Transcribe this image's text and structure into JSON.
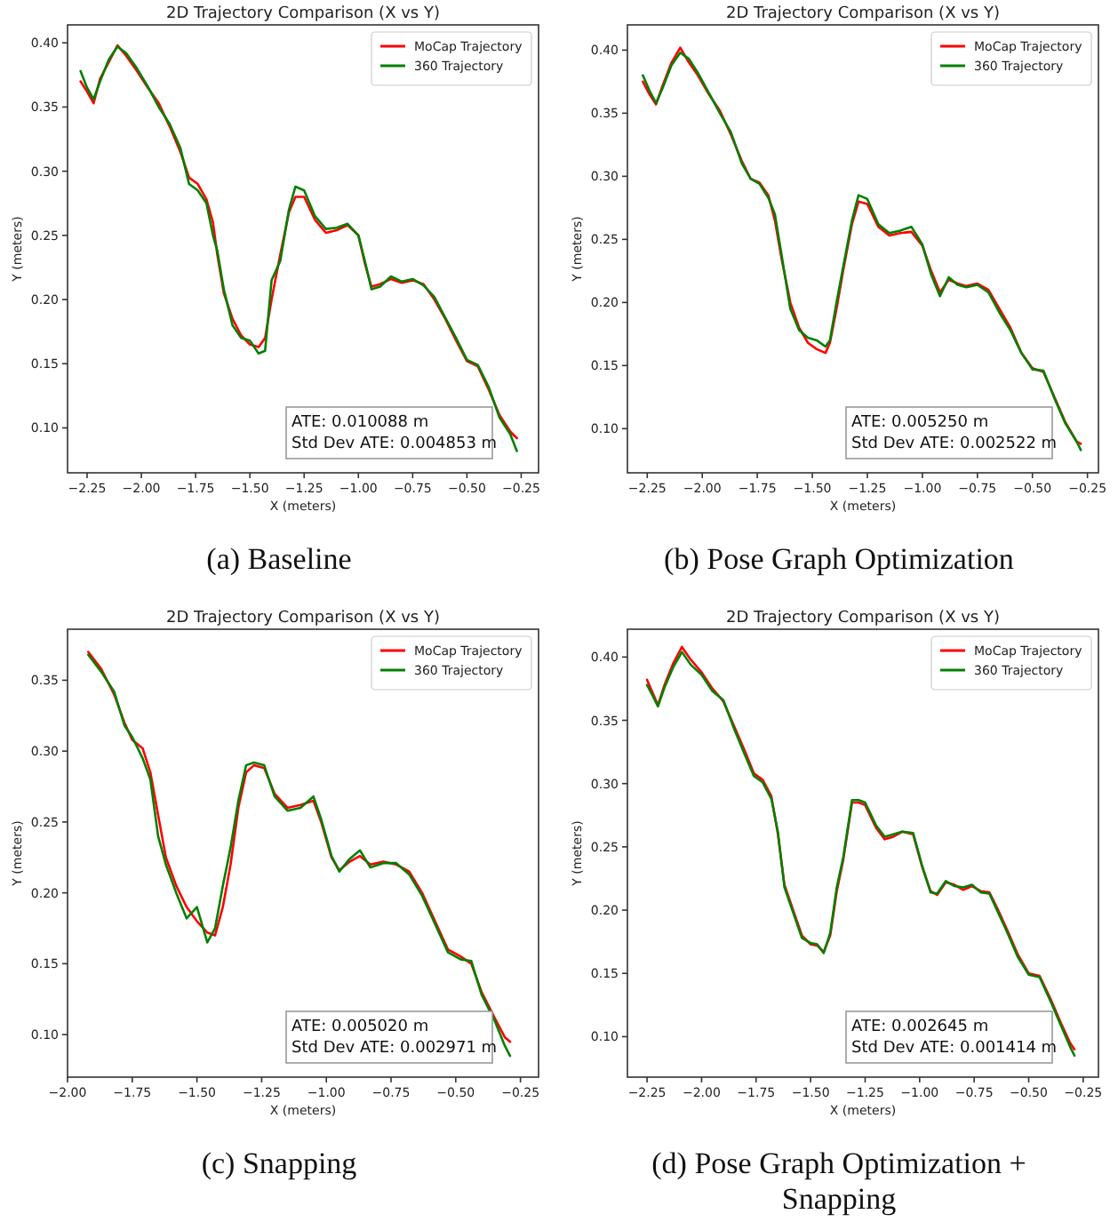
{
  "chart_data": [
    {
      "type": "line",
      "title": "2D Trajectory Comparison (X vs Y)",
      "xlabel": "X (meters)",
      "ylabel": "Y (meters)",
      "legend": "top right",
      "xlim": [
        -2.34,
        -0.17
      ],
      "ylim": [
        0.065,
        0.414
      ],
      "xticks": [
        {
          "value": -2.25,
          "label": "−2.25"
        },
        {
          "value": -2.0,
          "label": "−2.00"
        },
        {
          "value": -1.75,
          "label": "−1.75"
        },
        {
          "value": -1.5,
          "label": "−1.50"
        },
        {
          "value": -1.25,
          "label": "−1.25"
        },
        {
          "value": -1.0,
          "label": "−1.00"
        },
        {
          "value": -0.75,
          "label": "−0.75"
        },
        {
          "value": -0.5,
          "label": "−0.50"
        },
        {
          "value": -0.25,
          "label": "−0.25"
        }
      ],
      "yticks": [
        {
          "value": 0.1,
          "label": "0.10"
        },
        {
          "value": 0.15,
          "label": "0.15"
        },
        {
          "value": 0.2,
          "label": "0.20"
        },
        {
          "value": 0.25,
          "label": "0.25"
        },
        {
          "value": 0.3,
          "label": "0.30"
        },
        {
          "value": 0.35,
          "label": "0.35"
        },
        {
          "value": 0.4,
          "label": "0.40"
        }
      ],
      "x": [
        -2.28,
        -2.25,
        -2.22,
        -2.19,
        -2.15,
        -2.11,
        -2.07,
        -2.02,
        -1.97,
        -1.92,
        -1.87,
        -1.82,
        -1.78,
        -1.74,
        -1.7,
        -1.67,
        -1.65,
        -1.62,
        -1.58,
        -1.54,
        -1.5,
        -1.46,
        -1.43,
        -1.4,
        -1.36,
        -1.32,
        -1.29,
        -1.25,
        -1.2,
        -1.15,
        -1.1,
        -1.05,
        -1.0,
        -0.97,
        -0.94,
        -0.9,
        -0.85,
        -0.8,
        -0.75,
        -0.7,
        -0.65,
        -0.6,
        -0.55,
        -0.5,
        -0.45,
        -0.4,
        -0.35,
        -0.3,
        -0.27
      ],
      "series": [
        {
          "name": "MoCap Trajectory",
          "color": "#ff0000",
          "values": [
            0.37,
            0.362,
            0.353,
            0.372,
            0.385,
            0.398,
            0.39,
            0.378,
            0.365,
            0.353,
            0.335,
            0.315,
            0.295,
            0.29,
            0.278,
            0.26,
            0.235,
            0.205,
            0.185,
            0.172,
            0.165,
            0.163,
            0.17,
            0.2,
            0.235,
            0.268,
            0.28,
            0.28,
            0.262,
            0.252,
            0.254,
            0.258,
            0.25,
            0.228,
            0.21,
            0.212,
            0.216,
            0.213,
            0.215,
            0.212,
            0.2,
            0.185,
            0.168,
            0.152,
            0.148,
            0.13,
            0.11,
            0.097,
            0.092
          ]
        },
        {
          "name": "360 Trajectory",
          "color": "#008000",
          "values": [
            0.378,
            0.365,
            0.356,
            0.37,
            0.387,
            0.397,
            0.392,
            0.38,
            0.366,
            0.35,
            0.337,
            0.318,
            0.29,
            0.285,
            0.275,
            0.25,
            0.238,
            0.208,
            0.18,
            0.17,
            0.168,
            0.158,
            0.16,
            0.215,
            0.23,
            0.27,
            0.288,
            0.285,
            0.265,
            0.255,
            0.256,
            0.259,
            0.25,
            0.23,
            0.208,
            0.21,
            0.218,
            0.214,
            0.216,
            0.211,
            0.202,
            0.186,
            0.17,
            0.153,
            0.149,
            0.132,
            0.108,
            0.095,
            0.082
          ]
        }
      ],
      "annotations": [
        "ATE: 0.010088 m",
        "Std Dev ATE: 0.004853 m",
        "(a) Baseline"
      ]
    },
    {
      "type": "line",
      "title": "2D Trajectory Comparison (X vs Y)",
      "xlabel": "X (meters)",
      "ylabel": "Y (meters)",
      "legend": "top right",
      "xlim": [
        -2.34,
        -0.2
      ],
      "ylim": [
        0.065,
        0.42
      ],
      "xticks": [
        {
          "value": -2.25,
          "label": "−2.25"
        },
        {
          "value": -2.0,
          "label": "−2.00"
        },
        {
          "value": -1.75,
          "label": "−1.75"
        },
        {
          "value": -1.5,
          "label": "−1.50"
        },
        {
          "value": -1.25,
          "label": "−1.25"
        },
        {
          "value": -1.0,
          "label": "−1.00"
        },
        {
          "value": -0.75,
          "label": "−0.75"
        },
        {
          "value": -0.5,
          "label": "−0.50"
        },
        {
          "value": -0.25,
          "label": "−0.25"
        }
      ],
      "yticks": [
        {
          "value": 0.1,
          "label": "0.10"
        },
        {
          "value": 0.15,
          "label": "0.15"
        },
        {
          "value": 0.2,
          "label": "0.20"
        },
        {
          "value": 0.25,
          "label": "0.25"
        },
        {
          "value": 0.3,
          "label": "0.30"
        },
        {
          "value": 0.35,
          "label": "0.35"
        },
        {
          "value": 0.4,
          "label": "0.40"
        }
      ],
      "x": [
        -2.27,
        -2.24,
        -2.21,
        -2.18,
        -2.14,
        -2.1,
        -2.06,
        -2.02,
        -1.97,
        -1.92,
        -1.87,
        -1.82,
        -1.78,
        -1.74,
        -1.7,
        -1.67,
        -1.64,
        -1.6,
        -1.56,
        -1.52,
        -1.48,
        -1.44,
        -1.42,
        -1.39,
        -1.36,
        -1.32,
        -1.29,
        -1.25,
        -1.2,
        -1.15,
        -1.1,
        -1.05,
        -1.0,
        -0.96,
        -0.92,
        -0.88,
        -0.84,
        -0.8,
        -0.75,
        -0.7,
        -0.65,
        -0.6,
        -0.55,
        -0.5,
        -0.45,
        -0.4,
        -0.35,
        -0.3,
        -0.28
      ],
      "series": [
        {
          "name": "MoCap Trajectory",
          "color": "#ff0000",
          "values": [
            0.375,
            0.365,
            0.357,
            0.372,
            0.39,
            0.402,
            0.39,
            0.38,
            0.365,
            0.352,
            0.333,
            0.312,
            0.298,
            0.295,
            0.285,
            0.265,
            0.235,
            0.2,
            0.18,
            0.168,
            0.163,
            0.16,
            0.168,
            0.195,
            0.225,
            0.262,
            0.28,
            0.278,
            0.26,
            0.253,
            0.255,
            0.256,
            0.245,
            0.225,
            0.208,
            0.218,
            0.215,
            0.213,
            0.215,
            0.21,
            0.195,
            0.18,
            0.16,
            0.148,
            0.145,
            0.125,
            0.105,
            0.09,
            0.088
          ]
        },
        {
          "name": "360 Trajectory",
          "color": "#008000",
          "values": [
            0.38,
            0.368,
            0.358,
            0.37,
            0.388,
            0.398,
            0.393,
            0.382,
            0.366,
            0.35,
            0.335,
            0.31,
            0.298,
            0.294,
            0.283,
            0.27,
            0.238,
            0.195,
            0.178,
            0.172,
            0.17,
            0.165,
            0.17,
            0.2,
            0.228,
            0.265,
            0.285,
            0.282,
            0.262,
            0.255,
            0.257,
            0.26,
            0.246,
            0.222,
            0.205,
            0.22,
            0.214,
            0.212,
            0.214,
            0.208,
            0.192,
            0.178,
            0.16,
            0.147,
            0.146,
            0.124,
            0.104,
            0.09,
            0.083
          ]
        }
      ],
      "annotations": [
        "ATE: 0.005250 m",
        "Std Dev ATE: 0.002522 m",
        "(b) Pose Graph Optimization"
      ]
    },
    {
      "type": "line",
      "title": "2D Trajectory Comparison (X vs Y)",
      "xlabel": "X (meters)",
      "ylabel": "Y (meters)",
      "legend": "top right",
      "xlim": [
        -2.0,
        -0.18
      ],
      "ylim": [
        0.07,
        0.386
      ],
      "xticks": [
        {
          "value": -2.0,
          "label": "−2.00"
        },
        {
          "value": -1.75,
          "label": "−1.75"
        },
        {
          "value": -1.5,
          "label": "−1.50"
        },
        {
          "value": -1.25,
          "label": "−1.25"
        },
        {
          "value": -1.0,
          "label": "−1.00"
        },
        {
          "value": -0.75,
          "label": "−0.75"
        },
        {
          "value": -0.5,
          "label": "−0.50"
        },
        {
          "value": -0.25,
          "label": "−0.25"
        }
      ],
      "yticks": [
        {
          "value": 0.1,
          "label": "0.10"
        },
        {
          "value": 0.15,
          "label": "0.15"
        },
        {
          "value": 0.2,
          "label": "0.20"
        },
        {
          "value": 0.25,
          "label": "0.25"
        },
        {
          "value": 0.3,
          "label": "0.30"
        },
        {
          "value": 0.35,
          "label": "0.35"
        }
      ],
      "x": [
        -1.92,
        -1.87,
        -1.82,
        -1.78,
        -1.75,
        -1.71,
        -1.68,
        -1.65,
        -1.62,
        -1.58,
        -1.54,
        -1.5,
        -1.46,
        -1.43,
        -1.4,
        -1.37,
        -1.34,
        -1.31,
        -1.28,
        -1.24,
        -1.2,
        -1.15,
        -1.1,
        -1.05,
        -1.02,
        -0.98,
        -0.95,
        -0.91,
        -0.87,
        -0.83,
        -0.78,
        -0.73,
        -0.68,
        -0.63,
        -0.58,
        -0.53,
        -0.48,
        -0.44,
        -0.4,
        -0.35,
        -0.31,
        -0.29
      ],
      "series": [
        {
          "name": "MoCap Trajectory",
          "color": "#ff0000",
          "values": [
            0.37,
            0.358,
            0.34,
            0.32,
            0.308,
            0.302,
            0.285,
            0.255,
            0.225,
            0.205,
            0.19,
            0.18,
            0.172,
            0.17,
            0.19,
            0.22,
            0.26,
            0.285,
            0.29,
            0.288,
            0.27,
            0.26,
            0.262,
            0.265,
            0.25,
            0.225,
            0.216,
            0.222,
            0.226,
            0.22,
            0.222,
            0.22,
            0.215,
            0.2,
            0.18,
            0.16,
            0.155,
            0.15,
            0.13,
            0.112,
            0.098,
            0.095
          ]
        },
        {
          "name": "360 Trajectory",
          "color": "#008000",
          "values": [
            0.368,
            0.356,
            0.342,
            0.318,
            0.31,
            0.295,
            0.28,
            0.24,
            0.22,
            0.2,
            0.182,
            0.19,
            0.165,
            0.175,
            0.205,
            0.232,
            0.265,
            0.29,
            0.292,
            0.29,
            0.268,
            0.258,
            0.26,
            0.268,
            0.252,
            0.226,
            0.215,
            0.224,
            0.23,
            0.218,
            0.221,
            0.221,
            0.213,
            0.198,
            0.178,
            0.158,
            0.153,
            0.152,
            0.128,
            0.11,
            0.092,
            0.085
          ]
        }
      ],
      "annotations": [
        "ATE: 0.005020 m",
        "Std Dev ATE: 0.002971 m",
        "(c) Snapping"
      ]
    },
    {
      "type": "line",
      "title": "2D Trajectory Comparison (X vs Y)",
      "xlabel": "X (meters)",
      "ylabel": "Y (meters)",
      "legend": "top right",
      "xlim": [
        -2.34,
        -0.18
      ],
      "ylim": [
        0.068,
        0.422
      ],
      "xticks": [
        {
          "value": -2.25,
          "label": "−2.25"
        },
        {
          "value": -2.0,
          "label": "−2.00"
        },
        {
          "value": -1.75,
          "label": "−1.75"
        },
        {
          "value": -1.5,
          "label": "−1.50"
        },
        {
          "value": -1.25,
          "label": "−1.25"
        },
        {
          "value": -1.0,
          "label": "−1.00"
        },
        {
          "value": -0.75,
          "label": "−0.75"
        },
        {
          "value": -0.5,
          "label": "−0.50"
        },
        {
          "value": -0.25,
          "label": "−0.25"
        }
      ],
      "yticks": [
        {
          "value": 0.1,
          "label": "0.10"
        },
        {
          "value": 0.15,
          "label": "0.15"
        },
        {
          "value": 0.2,
          "label": "0.20"
        },
        {
          "value": 0.25,
          "label": "0.25"
        },
        {
          "value": 0.3,
          "label": "0.30"
        },
        {
          "value": 0.35,
          "label": "0.35"
        },
        {
          "value": 0.4,
          "label": "0.40"
        }
      ],
      "x": [
        -2.25,
        -2.22,
        -2.2,
        -2.17,
        -2.13,
        -2.09,
        -2.05,
        -2.0,
        -1.95,
        -1.9,
        -1.85,
        -1.8,
        -1.76,
        -1.72,
        -1.68,
        -1.65,
        -1.62,
        -1.58,
        -1.54,
        -1.5,
        -1.47,
        -1.44,
        -1.41,
        -1.38,
        -1.35,
        -1.31,
        -1.28,
        -1.25,
        -1.2,
        -1.16,
        -1.12,
        -1.08,
        -1.03,
        -0.99,
        -0.95,
        -0.92,
        -0.88,
        -0.84,
        -0.8,
        -0.76,
        -0.72,
        -0.68,
        -0.64,
        -0.6,
        -0.55,
        -0.5,
        -0.45,
        -0.4,
        -0.35,
        -0.31,
        -0.29
      ],
      "series": [
        {
          "name": "MoCap Trajectory",
          "color": "#ff0000",
          "values": [
            0.382,
            0.37,
            0.362,
            0.378,
            0.395,
            0.408,
            0.398,
            0.388,
            0.375,
            0.365,
            0.345,
            0.325,
            0.308,
            0.303,
            0.29,
            0.26,
            0.22,
            0.2,
            0.18,
            0.173,
            0.172,
            0.167,
            0.18,
            0.215,
            0.24,
            0.285,
            0.285,
            0.283,
            0.265,
            0.256,
            0.258,
            0.262,
            0.26,
            0.235,
            0.215,
            0.212,
            0.222,
            0.22,
            0.216,
            0.219,
            0.215,
            0.214,
            0.2,
            0.185,
            0.165,
            0.15,
            0.148,
            0.13,
            0.11,
            0.095,
            0.09
          ]
        },
        {
          "name": "360 Trajectory",
          "color": "#008000",
          "values": [
            0.378,
            0.368,
            0.361,
            0.376,
            0.392,
            0.404,
            0.394,
            0.386,
            0.373,
            0.366,
            0.343,
            0.322,
            0.306,
            0.301,
            0.288,
            0.262,
            0.218,
            0.198,
            0.178,
            0.174,
            0.173,
            0.166,
            0.182,
            0.218,
            0.242,
            0.287,
            0.287,
            0.285,
            0.267,
            0.258,
            0.26,
            0.262,
            0.261,
            0.236,
            0.214,
            0.213,
            0.223,
            0.219,
            0.218,
            0.22,
            0.214,
            0.213,
            0.198,
            0.183,
            0.163,
            0.149,
            0.147,
            0.128,
            0.108,
            0.092,
            0.085
          ]
        }
      ],
      "annotations": [
        "ATE: 0.002645 m",
        "Std Dev ATE: 0.001414 m",
        "(d) Pose Graph Optimization + Snapping"
      ]
    }
  ]
}
